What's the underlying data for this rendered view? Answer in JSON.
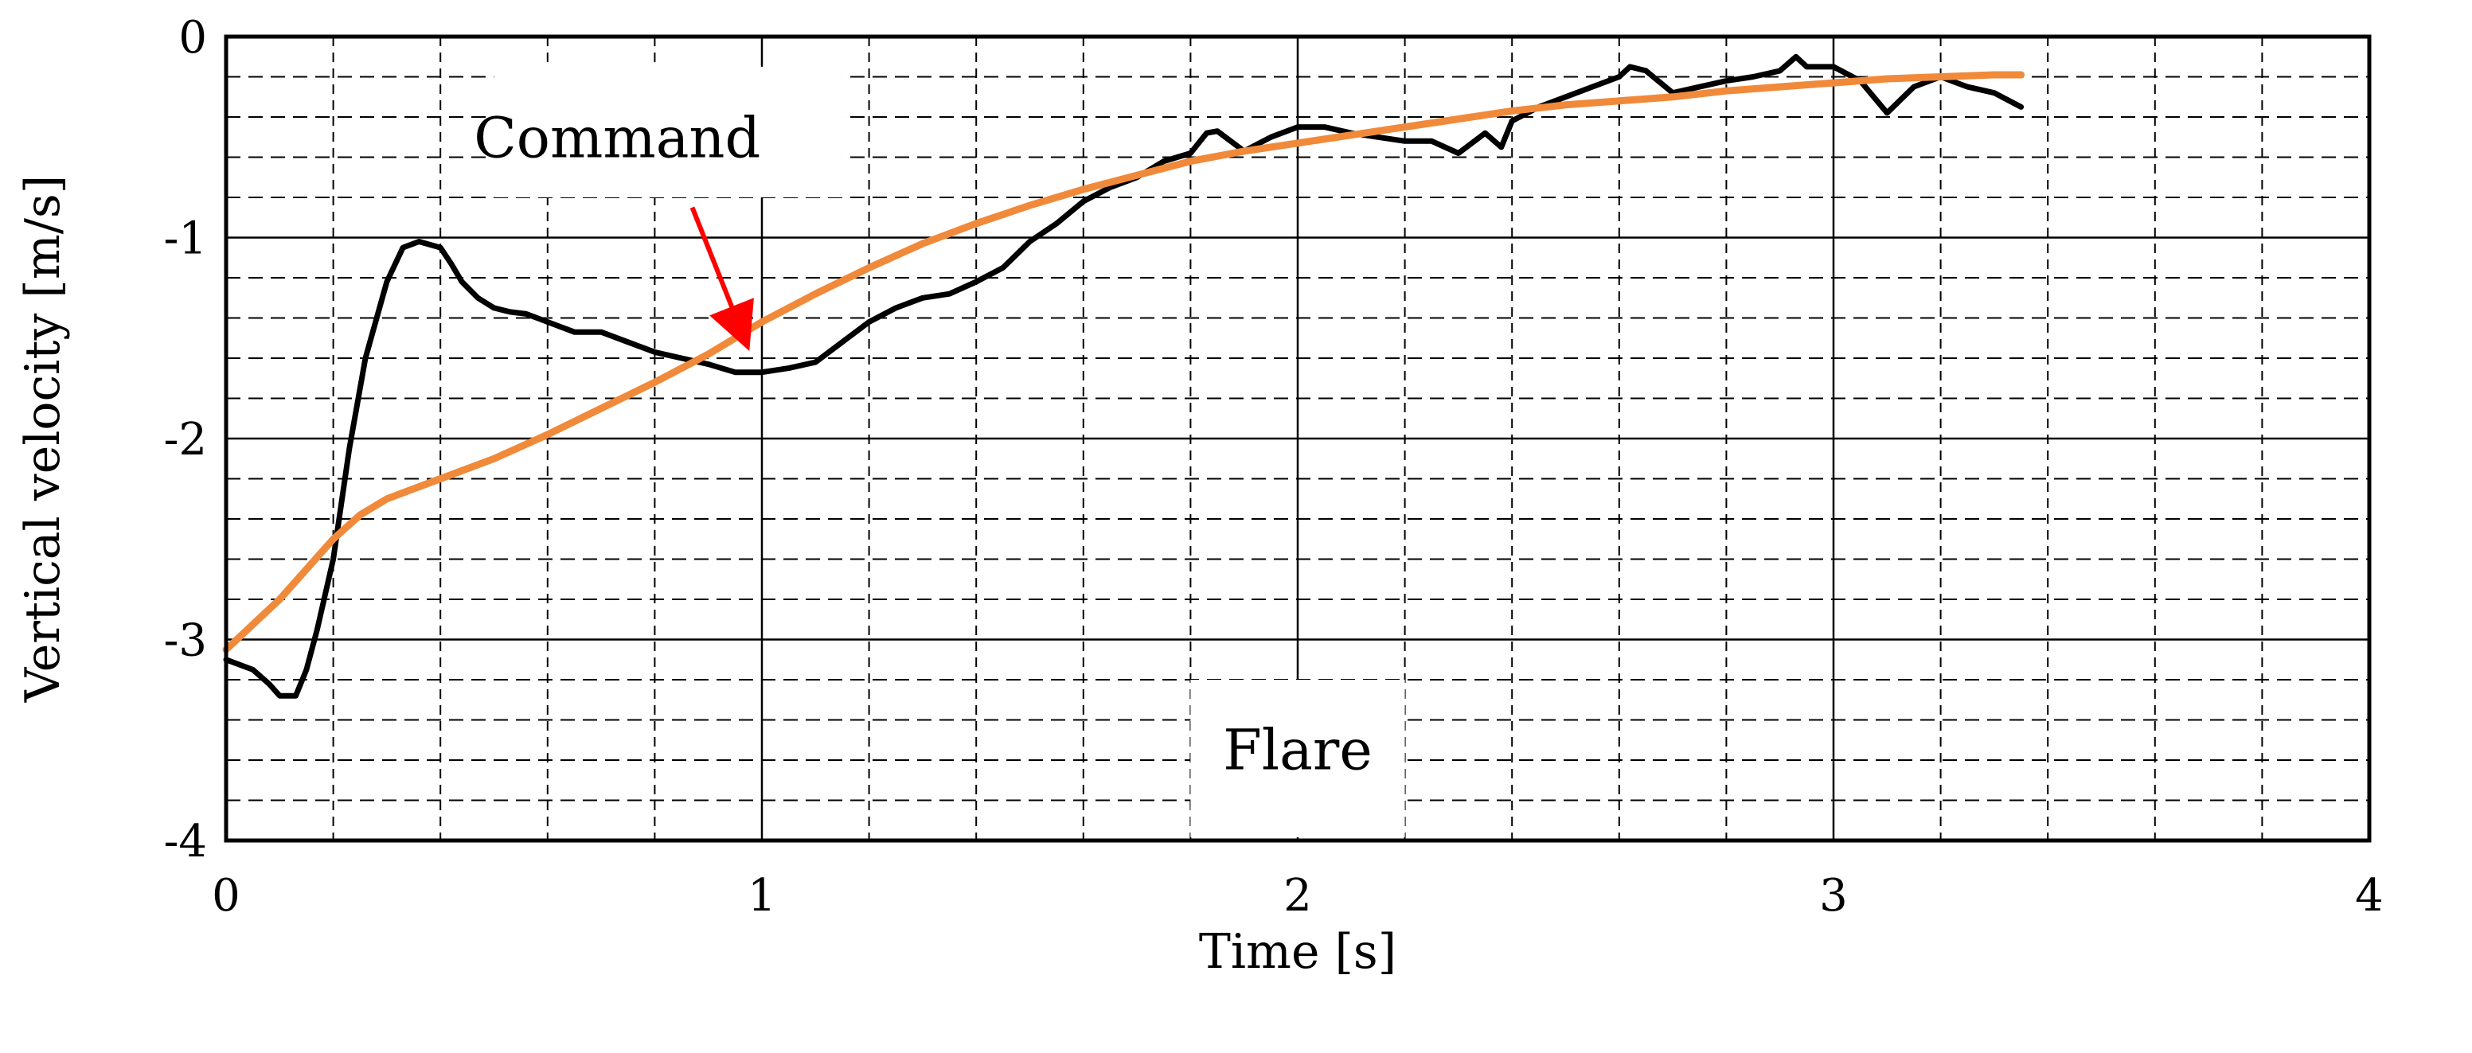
{
  "chart_data": {
    "type": "line",
    "xlabel": "Time [s]",
    "ylabel": "Vertical velocity [m/s]",
    "xlim": [
      0,
      4
    ],
    "ylim": [
      -4,
      0
    ],
    "x_ticks": [
      "0",
      "1",
      "2",
      "3",
      "4"
    ],
    "y_ticks": [
      "0",
      "-1",
      "-2",
      "-3",
      "-4"
    ],
    "grid": {
      "major": "solid",
      "minor": "dashed",
      "x_minor_step": 0.2,
      "y_minor_step": 0.2
    },
    "annotations": [
      {
        "text": "Command",
        "arrow_from": [
          0.87,
          -0.85
        ],
        "arrow_to": [
          0.97,
          -1.52
        ],
        "arrow_color": "#ff0000"
      },
      {
        "text": "Flare",
        "at": [
          2.0,
          -3.55
        ]
      }
    ],
    "series": [
      {
        "color": "#000000",
        "x": [
          0.0,
          0.05,
          0.08,
          0.1,
          0.13,
          0.15,
          0.17,
          0.2,
          0.23,
          0.26,
          0.3,
          0.33,
          0.36,
          0.4,
          0.42,
          0.44,
          0.47,
          0.5,
          0.53,
          0.56,
          0.6,
          0.65,
          0.7,
          0.75,
          0.8,
          0.85,
          0.9,
          0.95,
          1.0,
          1.05,
          1.1,
          1.15,
          1.2,
          1.25,
          1.3,
          1.35,
          1.4,
          1.45,
          1.5,
          1.55,
          1.6,
          1.65,
          1.7,
          1.75,
          1.8,
          1.83,
          1.85,
          1.9,
          1.95,
          2.0,
          2.05,
          2.1,
          2.15,
          2.2,
          2.25,
          2.3,
          2.35,
          2.38,
          2.4,
          2.45,
          2.5,
          2.55,
          2.6,
          2.62,
          2.65,
          2.7,
          2.75,
          2.8,
          2.85,
          2.9,
          2.93,
          2.95,
          3.0,
          3.05,
          3.1,
          3.15,
          3.2,
          3.25,
          3.3,
          3.35
        ],
        "y": [
          -3.1,
          -3.15,
          -3.22,
          -3.28,
          -3.28,
          -3.15,
          -2.95,
          -2.6,
          -2.05,
          -1.6,
          -1.22,
          -1.05,
          -1.02,
          -1.05,
          -1.13,
          -1.22,
          -1.3,
          -1.35,
          -1.37,
          -1.38,
          -1.42,
          -1.47,
          -1.47,
          -1.52,
          -1.57,
          -1.6,
          -1.63,
          -1.67,
          -1.67,
          -1.65,
          -1.62,
          -1.52,
          -1.42,
          -1.35,
          -1.3,
          -1.28,
          -1.22,
          -1.15,
          -1.02,
          -0.93,
          -0.82,
          -0.75,
          -0.7,
          -0.62,
          -0.58,
          -0.48,
          -0.47,
          -0.57,
          -0.5,
          -0.45,
          -0.45,
          -0.48,
          -0.5,
          -0.52,
          -0.52,
          -0.58,
          -0.48,
          -0.55,
          -0.42,
          -0.35,
          -0.3,
          -0.25,
          -0.2,
          -0.15,
          -0.17,
          -0.28,
          -0.25,
          -0.22,
          -0.2,
          -0.17,
          -0.1,
          -0.15,
          -0.15,
          -0.22,
          -0.38,
          -0.25,
          -0.2,
          -0.25,
          -0.28,
          -0.35
        ]
      },
      {
        "color": "#f08a3a",
        "x": [
          0.0,
          0.1,
          0.2,
          0.25,
          0.3,
          0.4,
          0.5,
          0.6,
          0.7,
          0.8,
          0.9,
          1.0,
          1.1,
          1.2,
          1.3,
          1.4,
          1.5,
          1.6,
          1.7,
          1.8,
          1.9,
          2.0,
          2.1,
          2.2,
          2.3,
          2.4,
          2.5,
          2.6,
          2.7,
          2.8,
          2.9,
          3.0,
          3.1,
          3.2,
          3.3,
          3.35
        ],
        "y": [
          -3.05,
          -2.8,
          -2.5,
          -2.38,
          -2.3,
          -2.2,
          -2.1,
          -1.98,
          -1.85,
          -1.72,
          -1.58,
          -1.42,
          -1.28,
          -1.15,
          -1.03,
          -0.93,
          -0.84,
          -0.76,
          -0.69,
          -0.62,
          -0.57,
          -0.53,
          -0.49,
          -0.45,
          -0.41,
          -0.37,
          -0.34,
          -0.32,
          -0.3,
          -0.27,
          -0.25,
          -0.23,
          -0.21,
          -0.2,
          -0.19,
          -0.19
        ]
      }
    ]
  }
}
